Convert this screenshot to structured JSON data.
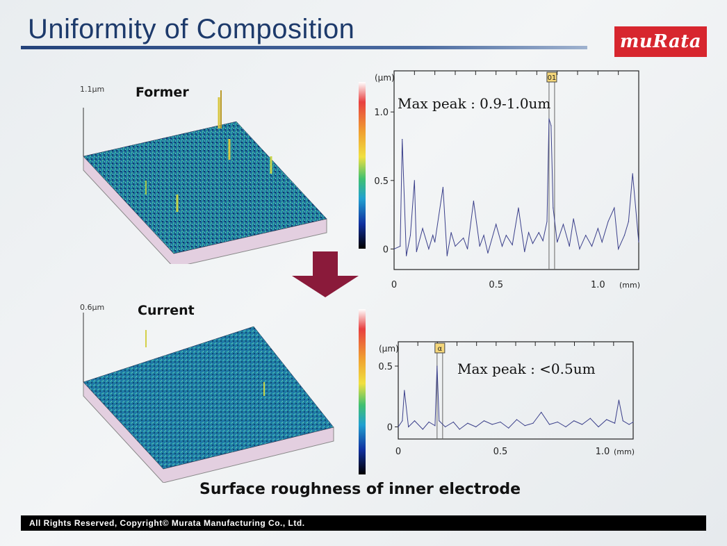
{
  "slide": {
    "title": "Uniformity of Composition",
    "logo_text": "muRata",
    "caption": "Surface roughness of inner electrode",
    "footer": "All Rights Reserved, Copyright© Murata Manufacturing Co., Ltd.",
    "arrow_color": "#8a1a3a",
    "accent_red": "#d7262e"
  },
  "surfaces": [
    {
      "label": "Former",
      "scale": "1.1μm"
    },
    {
      "label": "Current",
      "scale": "0.6μm"
    }
  ],
  "chart_data": [
    {
      "type": "line",
      "annotation": "Max peak : 0.9-1.0um",
      "ylabel": "(μm)",
      "xlabel": "(mm)",
      "xlim": [
        0,
        1.2
      ],
      "ylim": [
        -0.15,
        1.3
      ],
      "yticks": [
        "1.0",
        "0.5",
        "0"
      ],
      "xticks": [
        "0",
        "0.5",
        "1.0"
      ],
      "marker": "01",
      "marker_x": 0.76,
      "series": [
        {
          "x": [
            0,
            0.03,
            0.04,
            0.06,
            0.08,
            0.1,
            0.11,
            0.14,
            0.17,
            0.19,
            0.2,
            0.24,
            0.26,
            0.28,
            0.3,
            0.34,
            0.36,
            0.39,
            0.42,
            0.44,
            0.46,
            0.5,
            0.53,
            0.55,
            0.58,
            0.61,
            0.64,
            0.66,
            0.68,
            0.71,
            0.73,
            0.75,
            0.76,
            0.77,
            0.78,
            0.8,
            0.83,
            0.86,
            0.88,
            0.91,
            0.94,
            0.97,
            1.0,
            1.02,
            1.05,
            1.08,
            1.1,
            1.13,
            1.15,
            1.17,
            1.2
          ],
          "y": [
            0,
            0.02,
            0.8,
            -0.05,
            0.1,
            0.5,
            -0.02,
            0.15,
            0.0,
            0.1,
            0.05,
            0.45,
            -0.05,
            0.12,
            0.02,
            0.08,
            0.0,
            0.35,
            0.02,
            0.1,
            -0.03,
            0.18,
            0.02,
            0.1,
            0.03,
            0.3,
            -0.02,
            0.12,
            0.04,
            0.12,
            0.06,
            0.2,
            0.95,
            0.9,
            0.3,
            0.05,
            0.18,
            0.02,
            0.22,
            0.0,
            0.1,
            0.02,
            0.15,
            0.05,
            0.2,
            0.3,
            0.0,
            0.1,
            0.2,
            0.55,
            0.05
          ]
        }
      ]
    },
    {
      "type": "line",
      "annotation": "Max peak : <0.5um",
      "ylabel": "(μm)",
      "xlabel": "(mm)",
      "xlim": [
        0,
        1.15
      ],
      "ylim": [
        -0.1,
        0.7
      ],
      "yticks": [
        "0.5",
        "0"
      ],
      "xticks": [
        "0",
        "0.5",
        "1.0"
      ],
      "marker": "α",
      "marker_x": 0.19,
      "series": [
        {
          "x": [
            0,
            0.02,
            0.03,
            0.05,
            0.08,
            0.12,
            0.15,
            0.18,
            0.19,
            0.2,
            0.23,
            0.27,
            0.3,
            0.34,
            0.38,
            0.42,
            0.46,
            0.5,
            0.54,
            0.58,
            0.62,
            0.66,
            0.7,
            0.74,
            0.78,
            0.82,
            0.86,
            0.9,
            0.94,
            0.98,
            1.02,
            1.06,
            1.08,
            1.1,
            1.13,
            1.15
          ],
          "y": [
            0.0,
            0.05,
            0.3,
            0.0,
            0.05,
            -0.02,
            0.04,
            0.01,
            0.5,
            0.05,
            0.0,
            0.04,
            -0.02,
            0.03,
            0.0,
            0.05,
            0.02,
            0.04,
            -0.01,
            0.06,
            0.01,
            0.03,
            0.12,
            0.02,
            0.04,
            0.0,
            0.05,
            0.02,
            0.07,
            0.0,
            0.06,
            0.03,
            0.22,
            0.05,
            0.02,
            0.04
          ]
        }
      ]
    }
  ]
}
